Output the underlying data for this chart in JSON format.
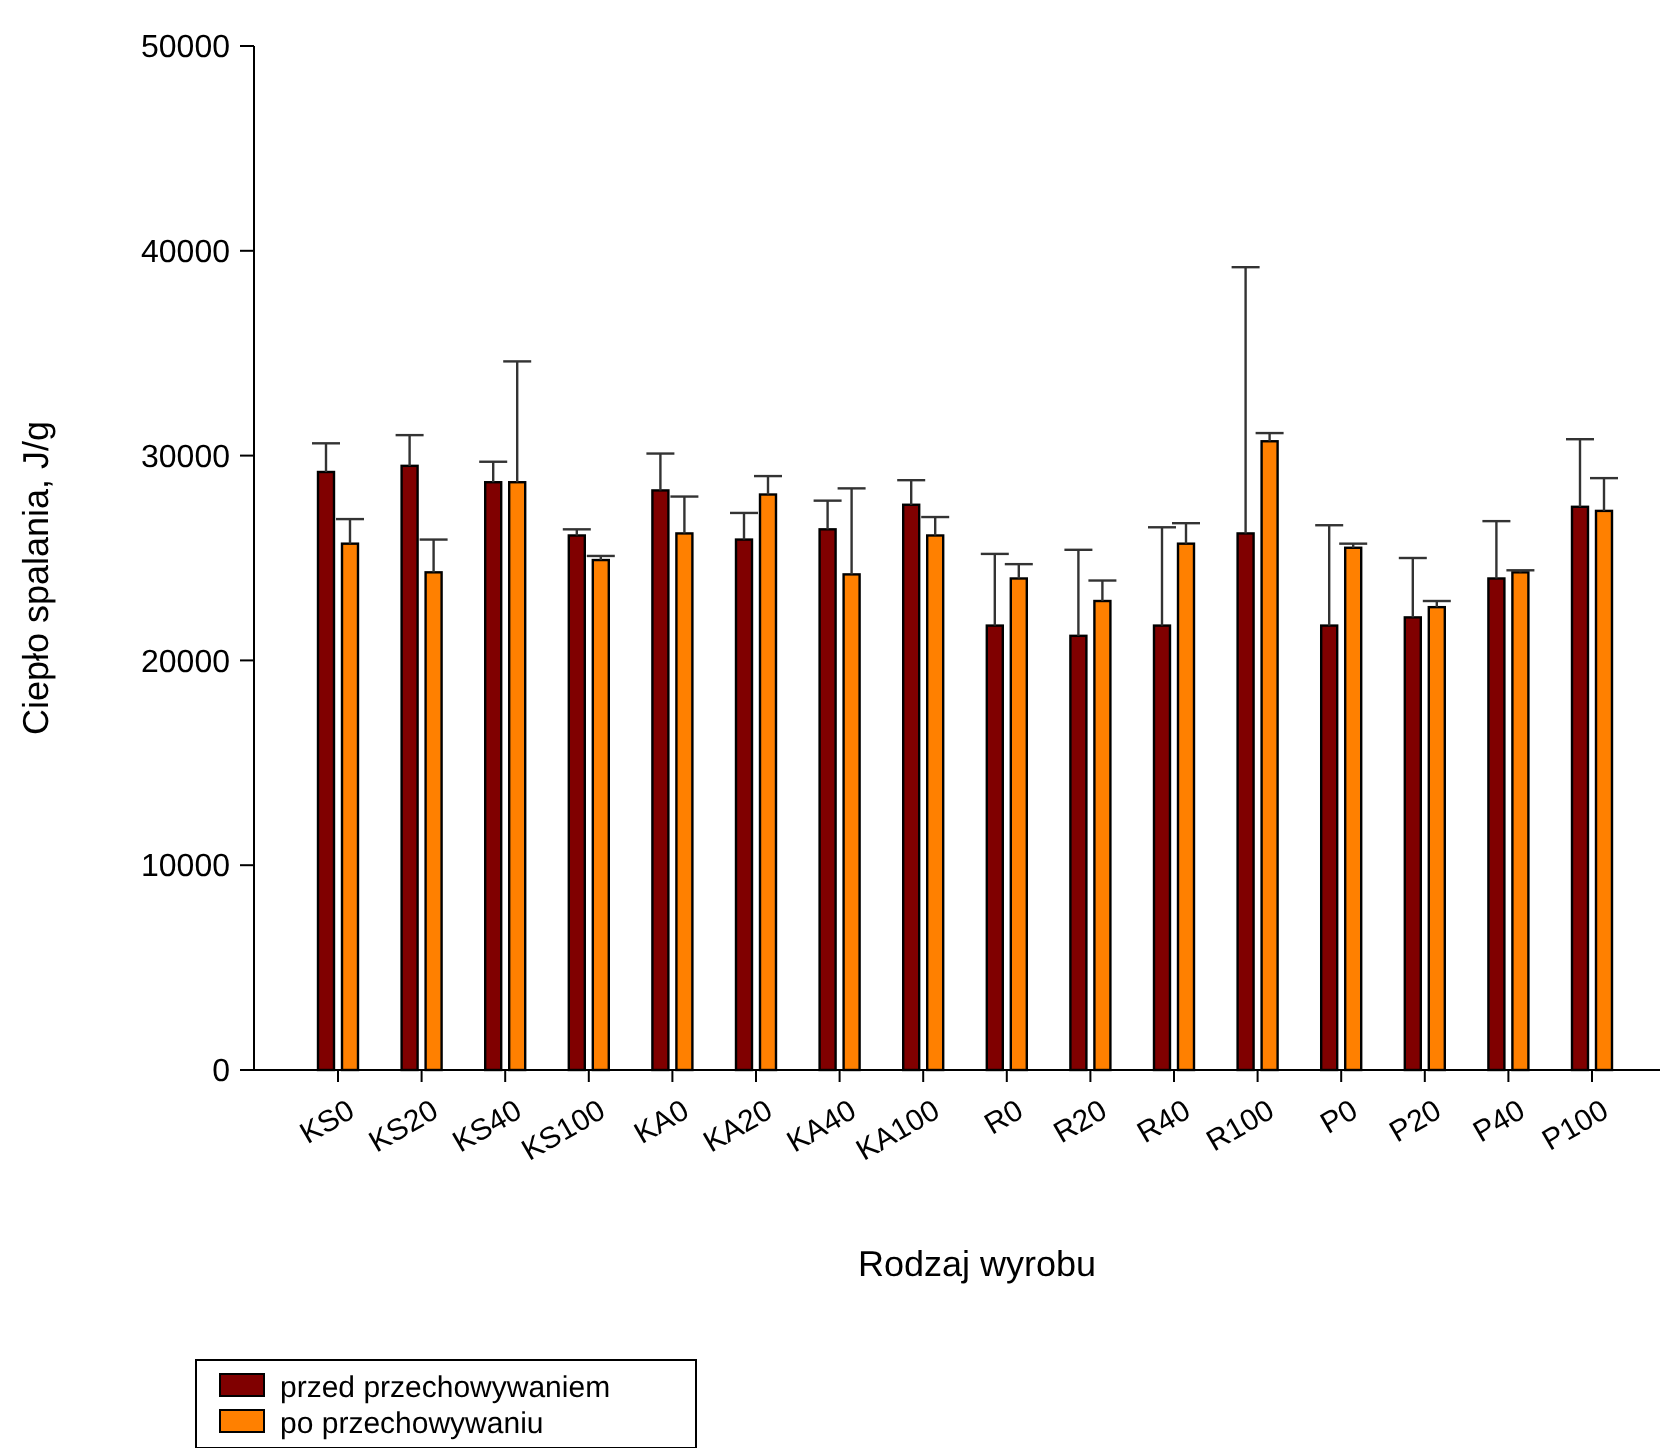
{
  "chart_data": {
    "type": "bar",
    "xlabel": "Rodzaj wyrobu",
    "ylabel": "Ciepło spalania, J/g",
    "categories": [
      "KS0",
      "KS20",
      "KS40",
      "KS100",
      "KA0",
      "KA20",
      "KA40",
      "KA100",
      "R0",
      "R20",
      "R40",
      "R100",
      "P0",
      "P20",
      "P40",
      "P100"
    ],
    "series": [
      {
        "name": "przed przechowywaniem",
        "color": "#800000",
        "values": [
          29200,
          29500,
          28700,
          26100,
          28300,
          25900,
          26400,
          27600,
          21700,
          21200,
          21700,
          26200,
          21700,
          22100,
          24000,
          27500
        ],
        "errors": [
          [
            29200,
            30600
          ],
          [
            29500,
            31000
          ],
          [
            28700,
            29700
          ],
          [
            26100,
            26400
          ],
          [
            28300,
            30100
          ],
          [
            25900,
            27200
          ],
          [
            26400,
            27800
          ],
          [
            27600,
            28800
          ],
          [
            21700,
            25200
          ],
          [
            21200,
            25400
          ],
          [
            21700,
            26500
          ],
          [
            26200,
            39200
          ],
          [
            21700,
            26600
          ],
          [
            22100,
            25000
          ],
          [
            24000,
            26800
          ],
          [
            27500,
            30800
          ]
        ]
      },
      {
        "name": "po przechowywaniu",
        "color": "#ff8000",
        "values": [
          25700,
          24300,
          28700,
          24900,
          26200,
          28100,
          24200,
          26100,
          24000,
          22900,
          25700,
          30700,
          25500,
          22600,
          24300,
          27300
        ],
        "errors": [
          [
            25700,
            26900
          ],
          [
            24300,
            25900
          ],
          [
            28700,
            34600
          ],
          [
            24900,
            25100
          ],
          [
            26200,
            28000
          ],
          [
            28100,
            29000
          ],
          [
            24200,
            28400
          ],
          [
            26100,
            27000
          ],
          [
            24000,
            24700
          ],
          [
            22900,
            23900
          ],
          [
            25700,
            26700
          ],
          [
            30700,
            31100
          ],
          [
            25500,
            25700
          ],
          [
            22600,
            22900
          ],
          [
            24300,
            24400
          ],
          [
            27300,
            28900
          ]
        ]
      }
    ],
    "ylim": [
      0,
      50000
    ],
    "yticks": [
      0,
      10000,
      20000,
      30000,
      40000,
      50000
    ],
    "grid": false,
    "legend": "bottom"
  }
}
